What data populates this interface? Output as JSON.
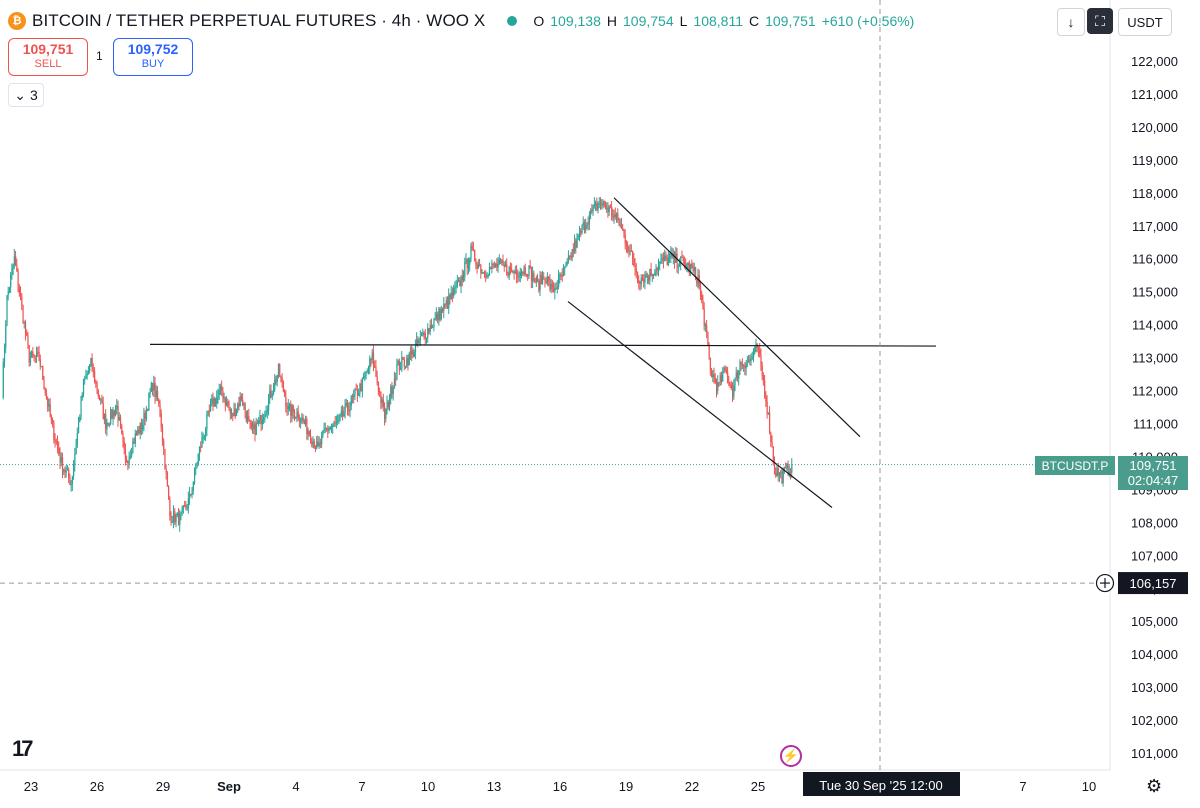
{
  "header": {
    "coin_symbol": "₿",
    "title": "BITCOIN / TETHER PERPETUAL FUTURES · 4h · WOO X",
    "ohlc": [
      {
        "key": "O",
        "value": "109,138"
      },
      {
        "key": "H",
        "value": "109,754"
      },
      {
        "key": "L",
        "value": "108,811"
      },
      {
        "key": "C",
        "value": "109,751"
      }
    ],
    "change": "+610 (+0.56%)"
  },
  "toolbar": {
    "down_arrow": "↓",
    "fullscreen": "⛶",
    "currency": "USDT"
  },
  "trade": {
    "sell_price": "109,751",
    "sell_label": "SELL",
    "spread": "1",
    "buy_price": "109,752",
    "buy_label": "BUY"
  },
  "indicators_toggle": {
    "arrow": "⌄",
    "count": "3"
  },
  "logo_text": "17",
  "settings_icon": "⚙",
  "bolt_icon": "⚡",
  "colors": {
    "up": "#26a69a",
    "down": "#ef5350",
    "price_label": "#4a9d8c",
    "crosshair": "#9598a1"
  },
  "chart_data": {
    "type": "candlestick",
    "y_range": [
      100500,
      122800
    ],
    "y_ticks": [
      101000,
      102000,
      103000,
      104000,
      105000,
      106000,
      107000,
      108000,
      109000,
      110000,
      111000,
      112000,
      113000,
      114000,
      115000,
      116000,
      117000,
      118000,
      119000,
      120000,
      121000,
      122000
    ],
    "x_ticks": [
      "23",
      "26",
      "29",
      "Sep",
      "4",
      "7",
      "10",
      "13",
      "16",
      "19",
      "22",
      "25",
      "7",
      "10"
    ],
    "series_symbol": "BTCUSDT.P",
    "last_price": "109,751",
    "countdown": "02:04:47",
    "crosshair_price": "106,157",
    "crosshair_time": "Tue 30 Sep '25   12:00",
    "anchors": [
      [
        0,
        112000
      ],
      [
        4,
        114800
      ],
      [
        10,
        116000
      ],
      [
        22,
        113000
      ],
      [
        30,
        113000
      ],
      [
        40,
        111000
      ],
      [
        48,
        109800
      ],
      [
        56,
        109200
      ],
      [
        66,
        112200
      ],
      [
        72,
        112800
      ],
      [
        84,
        111000
      ],
      [
        93,
        111500
      ],
      [
        100,
        109800
      ],
      [
        108,
        110600
      ],
      [
        114,
        111000
      ],
      [
        122,
        112200
      ],
      [
        128,
        111400
      ],
      [
        136,
        108200
      ],
      [
        144,
        108100
      ],
      [
        152,
        108700
      ],
      [
        160,
        110200
      ],
      [
        170,
        111600
      ],
      [
        178,
        112000
      ],
      [
        186,
        111200
      ],
      [
        194,
        111800
      ],
      [
        202,
        110700
      ],
      [
        208,
        111000
      ],
      [
        216,
        111700
      ],
      [
        224,
        112600
      ],
      [
        232,
        111400
      ],
      [
        240,
        111300
      ],
      [
        248,
        110800
      ],
      [
        256,
        110200
      ],
      [
        262,
        110800
      ],
      [
        272,
        111000
      ],
      [
        282,
        111600
      ],
      [
        292,
        112200
      ],
      [
        300,
        113000
      ],
      [
        310,
        111200
      ],
      [
        320,
        112700
      ],
      [
        330,
        113000
      ],
      [
        340,
        113600
      ],
      [
        350,
        114100
      ],
      [
        360,
        114600
      ],
      [
        370,
        115200
      ],
      [
        380,
        116200
      ],
      [
        390,
        115600
      ],
      [
        402,
        115800
      ],
      [
        414,
        115600
      ],
      [
        426,
        115700
      ],
      [
        434,
        115200
      ],
      [
        440,
        115500
      ],
      [
        446,
        115000
      ],
      [
        456,
        115600
      ],
      [
        464,
        116400
      ],
      [
        474,
        117200
      ],
      [
        484,
        117700
      ],
      [
        492,
        117500
      ],
      [
        500,
        117100
      ],
      [
        508,
        116300
      ],
      [
        516,
        115400
      ],
      [
        524,
        115500
      ],
      [
        534,
        115900
      ],
      [
        542,
        116000
      ],
      [
        550,
        115900
      ],
      [
        558,
        115700
      ],
      [
        564,
        115400
      ],
      [
        570,
        113900
      ],
      [
        574,
        112600
      ],
      [
        580,
        112100
      ],
      [
        586,
        112600
      ],
      [
        592,
        112000
      ],
      [
        598,
        112800
      ],
      [
        606,
        112900
      ],
      [
        612,
        113300
      ],
      [
        616,
        112500
      ],
      [
        620,
        111500
      ],
      [
        626,
        109600
      ],
      [
        632,
        109400
      ],
      [
        640,
        109750
      ]
    ],
    "trendlines": [
      {
        "t1": 150,
        "p1": 113400,
        "t2": 936,
        "p2": 113350
      },
      {
        "t1": 614,
        "p1": 117850,
        "t2": 860,
        "p2": 110600
      },
      {
        "t1": 568,
        "p1": 114700,
        "t2": 832,
        "p2": 108450
      }
    ]
  }
}
